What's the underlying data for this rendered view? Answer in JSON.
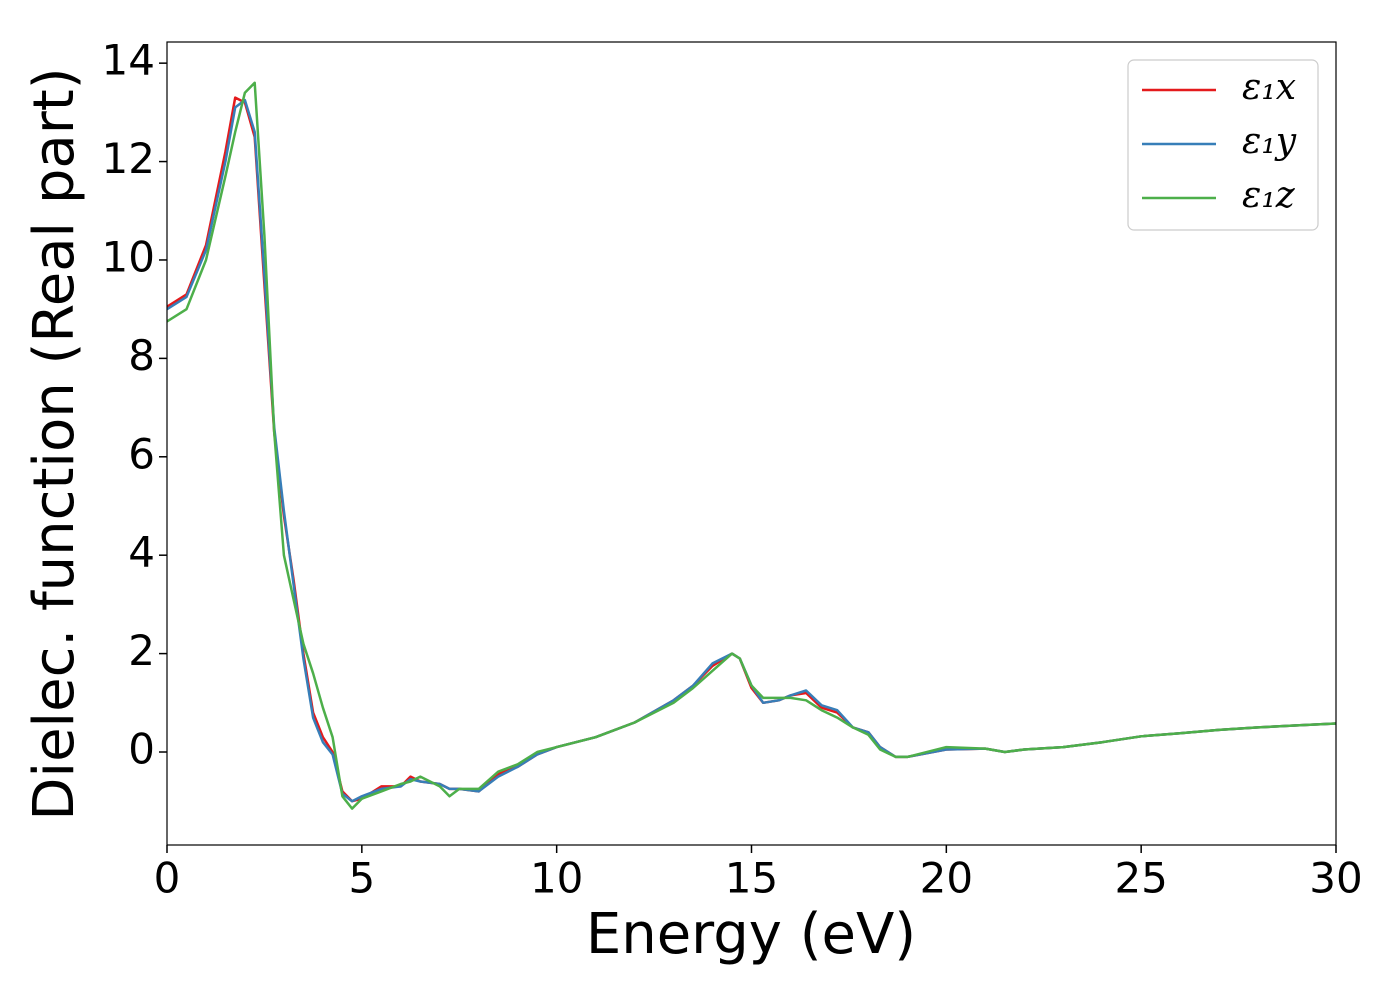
{
  "chart_data": {
    "type": "line",
    "xlabel": "Energy (eV)",
    "ylabel": "Dielec. function (Real part)",
    "x": [
      0,
      0.5,
      1,
      1.5,
      1.75,
      2,
      2.25,
      2.5,
      2.75,
      3,
      3.25,
      3.5,
      3.75,
      4,
      4.25,
      4.5,
      4.75,
      5,
      5.5,
      6,
      6.25,
      6.5,
      7,
      7.25,
      7.5,
      8,
      8.5,
      9,
      9.5,
      10,
      11,
      12,
      13,
      13.5,
      14,
      14.5,
      14.7,
      15,
      15.3,
      15.7,
      16,
      16.4,
      16.8,
      17.2,
      17.6,
      18,
      18.3,
      18.7,
      19,
      20,
      21,
      21.5,
      22,
      23,
      24,
      25,
      26,
      27,
      28,
      29,
      30
    ],
    "series": [
      {
        "name": "ε₁x",
        "color": "#e41a1c",
        "values": [
          9.05,
          9.3,
          10.3,
          12.2,
          13.3,
          13.2,
          12.5,
          9.5,
          6.5,
          4.8,
          3.5,
          2.0,
          0.8,
          0.3,
          0.0,
          -0.8,
          -1.0,
          -0.95,
          -0.7,
          -0.7,
          -0.5,
          -0.6,
          -0.65,
          -0.75,
          -0.75,
          -0.8,
          -0.45,
          -0.3,
          -0.05,
          0.1,
          0.3,
          0.6,
          1.05,
          1.35,
          1.75,
          2.0,
          1.9,
          1.3,
          1.0,
          1.05,
          1.15,
          1.2,
          0.9,
          0.8,
          0.5,
          0.4,
          0.1,
          -0.1,
          -0.1,
          0.05,
          0.07,
          0.0,
          0.05,
          0.1,
          0.2,
          0.32,
          0.38,
          0.45,
          0.5,
          0.54,
          0.58
        ]
      },
      {
        "name": "ε₁y",
        "color": "#377eb8",
        "values": [
          9.0,
          9.25,
          10.2,
          12.0,
          13.1,
          13.25,
          12.6,
          9.7,
          6.6,
          4.9,
          3.4,
          1.9,
          0.7,
          0.2,
          -0.05,
          -0.85,
          -1.0,
          -0.9,
          -0.75,
          -0.7,
          -0.55,
          -0.6,
          -0.65,
          -0.75,
          -0.75,
          -0.8,
          -0.5,
          -0.3,
          -0.05,
          0.1,
          0.3,
          0.6,
          1.05,
          1.35,
          1.8,
          2.0,
          1.9,
          1.35,
          1.0,
          1.05,
          1.15,
          1.25,
          0.95,
          0.85,
          0.5,
          0.4,
          0.1,
          -0.1,
          -0.1,
          0.05,
          0.07,
          0.0,
          0.05,
          0.1,
          0.2,
          0.32,
          0.38,
          0.45,
          0.5,
          0.54,
          0.58
        ]
      },
      {
        "name": "ε₁z",
        "color": "#4daf4a",
        "values": [
          8.75,
          9.0,
          10.0,
          11.7,
          12.6,
          13.4,
          13.6,
          10.5,
          6.5,
          4.0,
          3.1,
          2.2,
          1.6,
          0.9,
          0.3,
          -0.9,
          -1.15,
          -0.95,
          -0.8,
          -0.65,
          -0.6,
          -0.5,
          -0.7,
          -0.9,
          -0.75,
          -0.75,
          -0.4,
          -0.25,
          0.0,
          0.1,
          0.3,
          0.6,
          1.0,
          1.3,
          1.65,
          2.0,
          1.9,
          1.35,
          1.1,
          1.1,
          1.1,
          1.05,
          0.85,
          0.7,
          0.5,
          0.35,
          0.05,
          -0.1,
          -0.1,
          0.1,
          0.07,
          0.0,
          0.05,
          0.1,
          0.2,
          0.32,
          0.38,
          0.45,
          0.5,
          0.54,
          0.58
        ]
      }
    ],
    "xlim": [
      0,
      30
    ],
    "xticks": [
      0,
      5,
      10,
      15,
      20,
      25,
      30
    ],
    "ylim": [
      -1.89,
      14.43
    ],
    "yticks": [
      0,
      2,
      4,
      6,
      8,
      10,
      12,
      14
    ],
    "legend": "upper right",
    "grid": false
  }
}
